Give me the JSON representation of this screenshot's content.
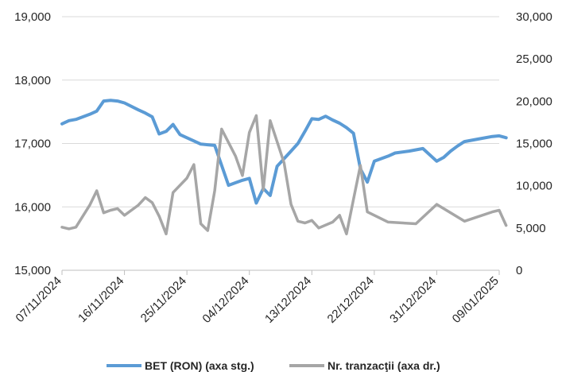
{
  "chart_data": {
    "type": "line",
    "title": "",
    "xlabel": "",
    "y_left_ticks": [
      "15,000",
      "16,000",
      "17,000",
      "18,000",
      "19,000"
    ],
    "y_left_range": [
      15000,
      19000
    ],
    "y_right_ticks": [
      "0",
      "5,000",
      "10,000",
      "15,000",
      "20,000",
      "25,000",
      "30,000"
    ],
    "y_right_range": [
      0,
      30000
    ],
    "x_range": [
      "2024-11-07",
      "2025-01-09"
    ],
    "x_ticks": [
      {
        "date": "2024-11-07",
        "label": "07/11/2024"
      },
      {
        "date": "2024-11-16",
        "label": "16/11/2024"
      },
      {
        "date": "2024-11-25",
        "label": "25/11/2024"
      },
      {
        "date": "2024-12-04",
        "label": "04/12/2024"
      },
      {
        "date": "2024-12-13",
        "label": "13/12/2024"
      },
      {
        "date": "2024-12-22",
        "label": "22/12/2024"
      },
      {
        "date": "2024-12-31",
        "label": "31/12/2024"
      },
      {
        "date": "2025-01-09",
        "label": "09/01/2025"
      }
    ],
    "grid": true,
    "legend_position": "bottom",
    "series": [
      {
        "name": "BET (RON) (axa stg.)",
        "axis": "left",
        "color": "#5B9BD5",
        "points": [
          [
            "2024-11-07",
            17310
          ],
          [
            "2024-11-08",
            17360
          ],
          [
            "2024-11-09",
            17380
          ],
          [
            "2024-11-11",
            17460
          ],
          [
            "2024-11-12",
            17510
          ],
          [
            "2024-11-13",
            17670
          ],
          [
            "2024-11-14",
            17680
          ],
          [
            "2024-11-15",
            17670
          ],
          [
            "2024-11-16",
            17640
          ],
          [
            "2024-11-18",
            17530
          ],
          [
            "2024-11-19",
            17480
          ],
          [
            "2024-11-20",
            17420
          ],
          [
            "2024-11-21",
            17150
          ],
          [
            "2024-11-22",
            17190
          ],
          [
            "2024-11-23",
            17300
          ],
          [
            "2024-11-24",
            17140
          ],
          [
            "2024-11-25",
            17090
          ],
          [
            "2024-11-26",
            17040
          ],
          [
            "2024-11-27",
            16990
          ],
          [
            "2024-11-28",
            16980
          ],
          [
            "2024-11-29",
            16970
          ],
          [
            "2024-12-01",
            16340
          ],
          [
            "2024-12-02",
            16380
          ],
          [
            "2024-12-03",
            16420
          ],
          [
            "2024-12-04",
            16450
          ],
          [
            "2024-12-05",
            16060
          ],
          [
            "2024-12-06",
            16290
          ],
          [
            "2024-12-07",
            16180
          ],
          [
            "2024-12-08",
            16640
          ],
          [
            "2024-12-09",
            16760
          ],
          [
            "2024-12-10",
            16880
          ],
          [
            "2024-12-11",
            17000
          ],
          [
            "2024-12-12",
            17190
          ],
          [
            "2024-12-13",
            17390
          ],
          [
            "2024-12-14",
            17380
          ],
          [
            "2024-12-15",
            17430
          ],
          [
            "2024-12-16",
            17370
          ],
          [
            "2024-12-17",
            17320
          ],
          [
            "2024-12-18",
            17250
          ],
          [
            "2024-12-19",
            17160
          ],
          [
            "2024-12-20",
            16600
          ],
          [
            "2024-12-21",
            16390
          ],
          [
            "2024-12-22",
            16720
          ],
          [
            "2024-12-24",
            16800
          ],
          [
            "2024-12-25",
            16850
          ],
          [
            "2024-12-27",
            16880
          ],
          [
            "2024-12-29",
            16920
          ],
          [
            "2024-12-31",
            16720
          ],
          [
            "2025-01-01",
            16780
          ],
          [
            "2025-01-02",
            16880
          ],
          [
            "2025-01-03",
            16960
          ],
          [
            "2025-01-04",
            17030
          ],
          [
            "2025-01-06",
            17070
          ],
          [
            "2025-01-08",
            17110
          ],
          [
            "2025-01-09",
            17120
          ],
          [
            "2025-01-10",
            17090
          ]
        ]
      },
      {
        "name": "Nr. tranzacţii (axa dr.)",
        "axis": "right",
        "color": "#A6A6A6",
        "points": [
          [
            "2024-11-07",
            5100
          ],
          [
            "2024-11-08",
            4900
          ],
          [
            "2024-11-09",
            5100
          ],
          [
            "2024-11-11",
            7700
          ],
          [
            "2024-11-12",
            9400
          ],
          [
            "2024-11-13",
            6800
          ],
          [
            "2024-11-14",
            7100
          ],
          [
            "2024-11-15",
            7300
          ],
          [
            "2024-11-16",
            6500
          ],
          [
            "2024-11-18",
            7700
          ],
          [
            "2024-11-19",
            8600
          ],
          [
            "2024-11-20",
            8000
          ],
          [
            "2024-11-21",
            6400
          ],
          [
            "2024-11-22",
            4300
          ],
          [
            "2024-11-23",
            9200
          ],
          [
            "2024-11-25",
            10900
          ],
          [
            "2024-11-26",
            12500
          ],
          [
            "2024-11-27",
            5500
          ],
          [
            "2024-11-28",
            4700
          ],
          [
            "2024-11-29",
            9400
          ],
          [
            "2024-11-30",
            16700
          ],
          [
            "2024-12-02",
            13500
          ],
          [
            "2024-12-03",
            11200
          ],
          [
            "2024-12-04",
            16300
          ],
          [
            "2024-12-05",
            18300
          ],
          [
            "2024-12-06",
            9500
          ],
          [
            "2024-12-07",
            17700
          ],
          [
            "2024-12-09",
            12700
          ],
          [
            "2024-12-10",
            7800
          ],
          [
            "2024-12-11",
            5800
          ],
          [
            "2024-12-12",
            5600
          ],
          [
            "2024-12-13",
            5900
          ],
          [
            "2024-12-14",
            5000
          ],
          [
            "2024-12-16",
            5700
          ],
          [
            "2024-12-17",
            6500
          ],
          [
            "2024-12-18",
            4300
          ],
          [
            "2024-12-19",
            8400
          ],
          [
            "2024-12-20",
            12400
          ],
          [
            "2024-12-21",
            6900
          ],
          [
            "2024-12-24",
            5700
          ],
          [
            "2024-12-28",
            5500
          ],
          [
            "2024-12-31",
            7800
          ],
          [
            "2025-01-04",
            5800
          ],
          [
            "2025-01-08",
            6900
          ],
          [
            "2025-01-09",
            7100
          ],
          [
            "2025-01-10",
            5300
          ]
        ]
      }
    ]
  }
}
